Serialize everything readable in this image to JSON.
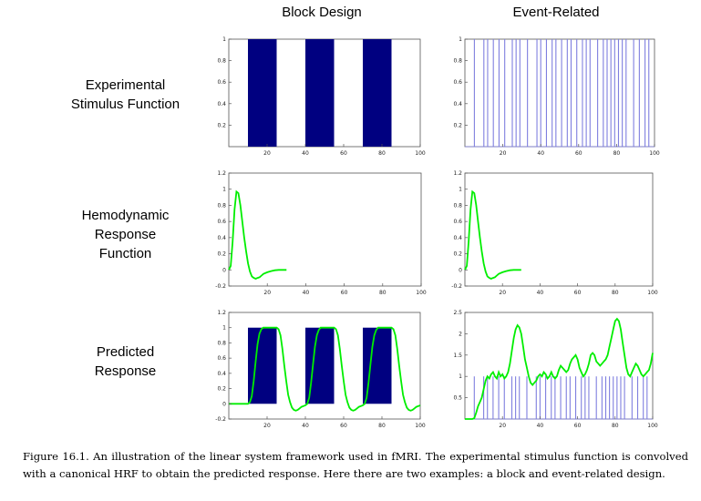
{
  "column_titles": [
    "Block Design",
    "Event-Related"
  ],
  "row_labels": [
    "Experimental\nStimulus Function",
    "Hemodynamic\nResponse\nFunction",
    "Predicted\nResponse"
  ],
  "caption": "Figure 16.1. An illustration of the linear system framework used in fMRI. The experimental stimulus function is convolved with a canonical HRF to obtain the predicted response. Here there are two examples: a block and event-related design.",
  "colors": {
    "block_fill": "#000080",
    "stimulus_line": "#7f7fdf",
    "response_line": "#00ee00",
    "axis": "#555555"
  },
  "chart_data": [
    {
      "panel": "block-stimulus",
      "type": "bar",
      "xlim": [
        0,
        100
      ],
      "ylim": [
        0,
        1
      ],
      "xticks": [
        "20",
        "40",
        "60",
        "80",
        "100"
      ],
      "yticks": [
        "0.2",
        "0.4",
        "0.6",
        "0.8",
        "1"
      ],
      "blocks": [
        [
          10,
          25
        ],
        [
          40,
          55
        ],
        [
          70,
          85
        ]
      ]
    },
    {
      "panel": "event-stimulus",
      "type": "bar",
      "xlim": [
        0,
        100
      ],
      "ylim": [
        0,
        1
      ],
      "xticks": [
        "20",
        "40",
        "60",
        "80",
        "100"
      ],
      "yticks": [
        "0.2",
        "0.4",
        "0.6",
        "0.8",
        "1"
      ],
      "events": [
        5,
        10,
        12,
        15,
        18,
        21,
        25,
        27,
        29,
        33,
        38,
        40,
        43,
        46,
        48,
        51,
        54,
        56,
        59,
        62,
        64,
        66,
        70,
        73,
        75,
        77,
        79,
        81,
        83,
        85,
        89,
        92,
        95,
        97
      ]
    },
    {
      "panel": "block-hrf",
      "type": "line",
      "xlim": [
        0,
        100
      ],
      "ylim": [
        -0.2,
        1.2
      ],
      "xticks": [
        "20",
        "40",
        "60",
        "80",
        "100"
      ],
      "yticks": [
        "-0.2",
        "0",
        "0.2",
        "0.4",
        "0.6",
        "0.8",
        "1",
        "1.2"
      ],
      "x": [
        0,
        1,
        2,
        3,
        4,
        5,
        6,
        7,
        8,
        9,
        10,
        11,
        12,
        13,
        14,
        15,
        16,
        17,
        18,
        20,
        22,
        24,
        26,
        28,
        30
      ],
      "y": [
        0,
        0.05,
        0.35,
        0.75,
        0.97,
        0.95,
        0.8,
        0.6,
        0.4,
        0.23,
        0.08,
        -0.02,
        -0.08,
        -0.1,
        -0.11,
        -0.1,
        -0.09,
        -0.07,
        -0.05,
        -0.03,
        -0.015,
        -0.005,
        0,
        0,
        0
      ]
    },
    {
      "panel": "event-hrf",
      "type": "line",
      "xlim": [
        0,
        100
      ],
      "ylim": [
        -0.2,
        1.2
      ],
      "xticks": [
        "20",
        "40",
        "60",
        "80",
        "100"
      ],
      "yticks": [
        "-0.2",
        "0",
        "0.2",
        "0.4",
        "0.6",
        "0.8",
        "1",
        "1.2"
      ],
      "x": [
        0,
        1,
        2,
        3,
        4,
        5,
        6,
        7,
        8,
        9,
        10,
        11,
        12,
        13,
        14,
        15,
        16,
        17,
        18,
        20,
        22,
        24,
        26,
        28,
        30
      ],
      "y": [
        0,
        0.05,
        0.35,
        0.75,
        0.97,
        0.95,
        0.8,
        0.6,
        0.4,
        0.23,
        0.08,
        -0.02,
        -0.08,
        -0.1,
        -0.11,
        -0.1,
        -0.09,
        -0.07,
        -0.05,
        -0.03,
        -0.015,
        -0.005,
        0,
        0,
        0
      ]
    },
    {
      "panel": "block-predicted",
      "type": "line",
      "xlim": [
        0,
        100
      ],
      "ylim": [
        -0.2,
        1.2
      ],
      "xticks": [
        "20",
        "40",
        "60",
        "80",
        "100"
      ],
      "yticks": [
        "-0.2",
        "0",
        "0.2",
        "0.4",
        "0.6",
        "0.8",
        "1",
        "1.2"
      ],
      "blocks": [
        [
          10,
          25
        ],
        [
          40,
          55
        ],
        [
          70,
          85
        ]
      ],
      "x": [
        0,
        10,
        11,
        12,
        13,
        14,
        15,
        16,
        17,
        18,
        19,
        20,
        21,
        22,
        23,
        24,
        25,
        26,
        27,
        28,
        29,
        30,
        31,
        32,
        33,
        34,
        35,
        36,
        37,
        38,
        39,
        40,
        41,
        42,
        43,
        44,
        45,
        46,
        47,
        48,
        49,
        50,
        51,
        52,
        53,
        54,
        55,
        56,
        57,
        58,
        59,
        60,
        61,
        62,
        63,
        64,
        65,
        66,
        67,
        68,
        69,
        70,
        71,
        72,
        73,
        74,
        75,
        76,
        77,
        78,
        79,
        80,
        81,
        82,
        83,
        84,
        85,
        86,
        87,
        88,
        89,
        90,
        91,
        92,
        93,
        94,
        95,
        96,
        97,
        98,
        99,
        100
      ],
      "y": [
        0,
        0,
        0.02,
        0.1,
        0.3,
        0.55,
        0.78,
        0.92,
        0.98,
        1,
        1,
        1,
        1,
        1,
        1,
        1,
        1,
        0.98,
        0.9,
        0.72,
        0.5,
        0.3,
        0.12,
        0.02,
        -0.05,
        -0.08,
        -0.09,
        -0.08,
        -0.06,
        -0.04,
        -0.03,
        -0.02,
        0,
        0.08,
        0.28,
        0.52,
        0.75,
        0.9,
        0.97,
        1,
        1,
        1,
        1,
        1,
        1,
        1,
        1,
        0.98,
        0.9,
        0.72,
        0.5,
        0.3,
        0.12,
        0.02,
        -0.05,
        -0.08,
        -0.09,
        -0.08,
        -0.06,
        -0.04,
        -0.03,
        -0.02,
        0,
        0.08,
        0.28,
        0.52,
        0.75,
        0.9,
        0.97,
        1,
        1,
        1,
        1,
        1,
        1,
        1,
        1,
        0.98,
        0.9,
        0.72,
        0.5,
        0.3,
        0.12,
        0.02,
        -0.05,
        -0.08,
        -0.09,
        -0.08,
        -0.06,
        -0.04,
        -0.03,
        -0.02
      ]
    },
    {
      "panel": "event-predicted",
      "type": "line",
      "xlim": [
        0,
        100
      ],
      "ylim": [
        0,
        2.5
      ],
      "xticks": [
        "20",
        "40",
        "60",
        "80",
        "100"
      ],
      "yticks": [
        "0.5",
        "1",
        "1.5",
        "2",
        "2.5"
      ],
      "events": [
        5,
        10,
        12,
        15,
        18,
        21,
        25,
        27,
        29,
        33,
        38,
        40,
        43,
        46,
        48,
        51,
        54,
        56,
        59,
        62,
        64,
        66,
        70,
        73,
        75,
        77,
        79,
        81,
        83,
        85,
        89,
        92,
        95,
        97
      ],
      "x": [
        0,
        4,
        5,
        6,
        7,
        8,
        9,
        10,
        11,
        12,
        13,
        14,
        15,
        16,
        17,
        18,
        19,
        20,
        21,
        22,
        23,
        24,
        25,
        26,
        27,
        28,
        29,
        30,
        31,
        32,
        33,
        34,
        35,
        36,
        37,
        38,
        39,
        40,
        41,
        42,
        43,
        44,
        45,
        46,
        47,
        48,
        49,
        50,
        51,
        52,
        53,
        54,
        55,
        56,
        57,
        58,
        59,
        60,
        61,
        62,
        63,
        64,
        65,
        66,
        67,
        68,
        69,
        70,
        71,
        72,
        73,
        74,
        75,
        76,
        77,
        78,
        79,
        80,
        81,
        82,
        83,
        84,
        85,
        86,
        87,
        88,
        89,
        90,
        91,
        92,
        93,
        94,
        95,
        96,
        97,
        98,
        99,
        100
      ],
      "y": [
        0,
        0,
        0.02,
        0.15,
        0.3,
        0.4,
        0.5,
        0.7,
        0.9,
        1.0,
        0.95,
        1.05,
        1.1,
        1.0,
        0.95,
        1.1,
        1.0,
        1.05,
        0.95,
        1.0,
        1.1,
        1.3,
        1.6,
        1.9,
        2.1,
        2.2,
        2.15,
        2.0,
        1.7,
        1.4,
        1.2,
        1.0,
        0.85,
        0.8,
        0.85,
        0.9,
        1.0,
        1.05,
        1.0,
        1.1,
        1.05,
        0.95,
        1.0,
        1.1,
        1.0,
        0.95,
        1.0,
        1.15,
        1.25,
        1.2,
        1.15,
        1.1,
        1.15,
        1.3,
        1.4,
        1.45,
        1.5,
        1.4,
        1.2,
        1.1,
        1.0,
        1.05,
        1.15,
        1.3,
        1.5,
        1.55,
        1.5,
        1.35,
        1.3,
        1.25,
        1.3,
        1.35,
        1.4,
        1.5,
        1.7,
        1.9,
        2.1,
        2.3,
        2.35,
        2.3,
        2.1,
        1.8,
        1.5,
        1.2,
        1.05,
        1.0,
        1.1,
        1.2,
        1.3,
        1.25,
        1.15,
        1.05,
        1.0,
        1.05,
        1.1,
        1.15,
        1.3,
        1.55
      ]
    }
  ]
}
